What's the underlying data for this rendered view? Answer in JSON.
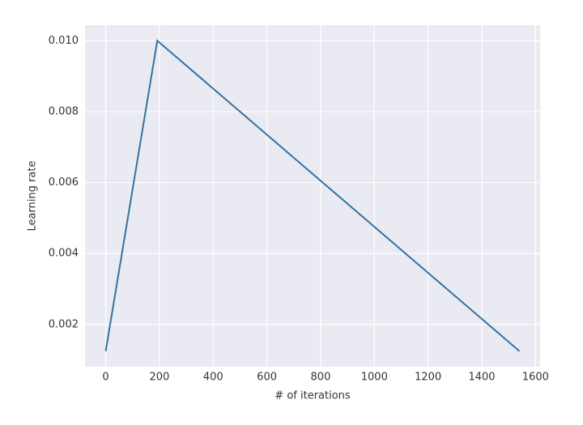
{
  "chart_data": {
    "type": "line",
    "x_label": "# of iterations",
    "y_label": "Learning rate",
    "x": [
      0,
      192,
      1540
    ],
    "series": [
      {
        "color": "#3274a1",
        "values": [
          0.00125,
          0.01,
          0.00125
        ]
      }
    ],
    "xlim": [
      -77,
      1617
    ],
    "ylim": [
      0.00081,
      0.01044
    ],
    "xticks": [
      0,
      200,
      400,
      600,
      800,
      1000,
      1200,
      1400,
      1600
    ],
    "yticks": [
      0.002,
      0.004,
      0.006,
      0.008,
      {
        "value": 0.01,
        "label": "0.010"
      }
    ],
    "grid": true
  }
}
